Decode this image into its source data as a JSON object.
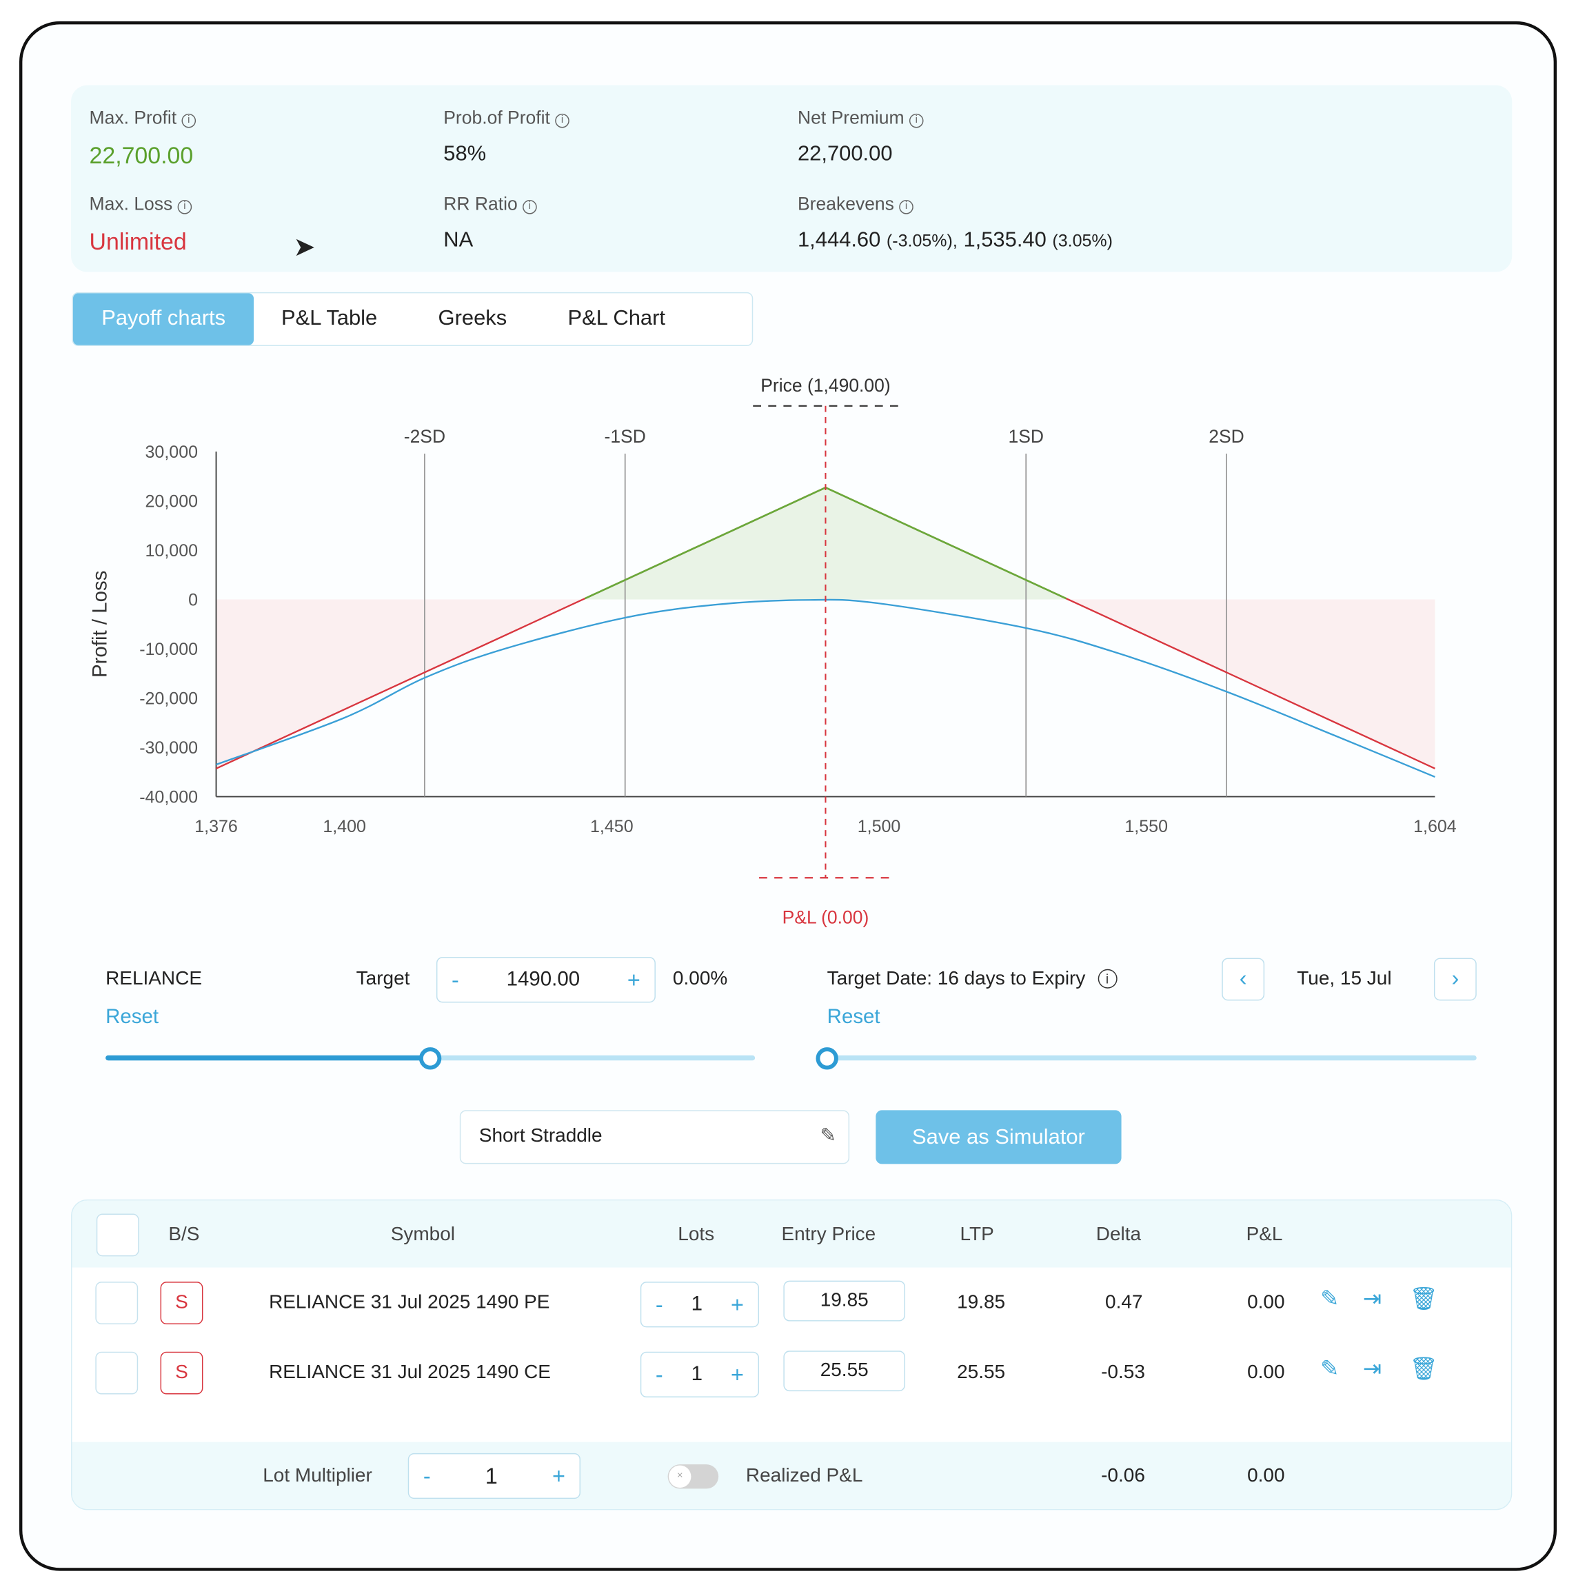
{
  "summary": {
    "max_profit": {
      "label": "Max. Profit",
      "value": "22,700.00"
    },
    "prob_profit": {
      "label": "Prob.of Profit",
      "value": "58%"
    },
    "net_premium": {
      "label": "Net Premium",
      "value": "22,700.00"
    },
    "max_loss": {
      "label": "Max. Loss",
      "value": "Unlimited"
    },
    "rr_ratio": {
      "label": "RR Ratio",
      "value": "NA"
    },
    "breakevens": {
      "label": "Breakevens",
      "lower": "1,444.60",
      "lower_pct": "(-3.05%),",
      "upper": "1,535.40",
      "upper_pct": "(3.05%)"
    }
  },
  "tabs": [
    {
      "label": "Payoff charts",
      "active": true
    },
    {
      "label": "P&L Table"
    },
    {
      "label": "Greeks"
    },
    {
      "label": "P&L Chart"
    }
  ],
  "chart_data": {
    "type": "line",
    "ylabel": "Profit / Loss",
    "xlim": [
      1376,
      1604
    ],
    "ylim": [
      -40000,
      30000
    ],
    "x_ticks": [
      "1,376",
      "1,400",
      "1,450",
      "1,500",
      "1,550",
      "1,604"
    ],
    "x_tick_values": [
      1376,
      1400,
      1450,
      1500,
      1550,
      1604
    ],
    "y_ticks": [
      "30,000",
      "20,000",
      "10,000",
      "0",
      "-10,000",
      "-20,000",
      "-30,000",
      "-40,000"
    ],
    "y_tick_values": [
      30000,
      20000,
      10000,
      0,
      -10000,
      -20000,
      -30000,
      -40000
    ],
    "price_label": "Price (1,490.00)",
    "price": 1490,
    "pnl_label": "P&L (0.00)",
    "sd_lines": [
      {
        "label": "-2SD",
        "x": 1415
      },
      {
        "label": "-1SD",
        "x": 1452.5
      },
      {
        "label": "1SD",
        "x": 1527.5
      },
      {
        "label": "2SD",
        "x": 1565
      }
    ],
    "series": [
      {
        "role": "expiry",
        "color": "#d8363f",
        "profit_color": "#6aa83a",
        "x": [
          1376,
          1490,
          1604
        ],
        "y": [
          -34300,
          22700,
          -34300
        ]
      },
      {
        "role": "target-date",
        "color": "#3a9fd6",
        "x": [
          1376,
          1400,
          1415,
          1430,
          1452.5,
          1470,
          1487,
          1500,
          1527.5,
          1545,
          1565,
          1585,
          1604
        ],
        "y": [
          -33500,
          -24000,
          -15900,
          -10000,
          -3700,
          -1000,
          -100,
          -800,
          -5800,
          -11000,
          -18700,
          -27500,
          -36000
        ]
      }
    ]
  },
  "controls": {
    "symbol": "RELIANCE",
    "target_label": "Target",
    "target_value": "1490.00",
    "target_pct": "0.00%",
    "reset": "Reset",
    "target_date_label": "Target Date: 16 days to Expiry",
    "date": "Tue, 15 Jul",
    "date_reset": "Reset",
    "price_slider": 0.5,
    "date_slider": 0.0,
    "minus": "-",
    "plus": "+",
    "prev": "‹",
    "next": "›"
  },
  "strategy": {
    "name": "Short Straddle",
    "save_label": "Save as Simulator"
  },
  "table": {
    "headers": [
      "B/S",
      "Symbol",
      "Lots",
      "Entry Price",
      "LTP",
      "Delta",
      "P&L"
    ],
    "rows": [
      {
        "bs": "S",
        "symbol": "RELIANCE 31 Jul 2025 1490 PE",
        "lots": "1",
        "entry": "19.85",
        "ltp": "19.85",
        "delta": "0.47",
        "pnl": "0.00"
      },
      {
        "bs": "S",
        "symbol": "RELIANCE 31 Jul 2025 1490 CE",
        "lots": "1",
        "entry": "25.55",
        "ltp": "25.55",
        "delta": "-0.53",
        "pnl": "0.00"
      }
    ],
    "footer": {
      "lot_multiplier_label": "Lot Multiplier",
      "lot_multiplier": "1",
      "realized_label": "Realized P&L",
      "delta_total": "-0.06",
      "pnl_total": "0.00",
      "toggle_on": false
    }
  }
}
